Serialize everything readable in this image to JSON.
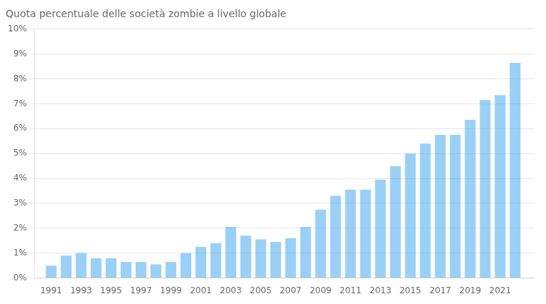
{
  "chart_data": {
    "type": "bar",
    "title": "Quota percentuale delle società zombie a livello globale",
    "x": [
      1991,
      1992,
      1993,
      1994,
      1995,
      1996,
      1997,
      1998,
      1999,
      2000,
      2001,
      2002,
      2003,
      2004,
      2005,
      2006,
      2007,
      2008,
      2009,
      2010,
      2011,
      2012,
      2013,
      2014,
      2015,
      2016,
      2017,
      2018,
      2019,
      2020,
      2021,
      2022
    ],
    "values": [
      0.5,
      0.9,
      1.0,
      0.8,
      0.8,
      0.65,
      0.65,
      0.55,
      0.65,
      1.0,
      1.25,
      1.4,
      2.05,
      1.7,
      1.55,
      1.45,
      1.6,
      2.05,
      2.75,
      3.3,
      3.55,
      3.55,
      3.95,
      4.5,
      5.0,
      5.4,
      5.75,
      5.75,
      6.35,
      7.15,
      7.35,
      8.65
    ],
    "xlim": [
      1989.9,
      2023.3
    ],
    "xticks": [
      1991,
      1993,
      1995,
      1997,
      1999,
      2001,
      2003,
      2005,
      2007,
      2009,
      2011,
      2013,
      2015,
      2017,
      2019,
      2021
    ],
    "ylim": [
      0,
      10
    ],
    "yticks": [
      {
        "value": 0,
        "label": "0%"
      },
      {
        "value": 1,
        "label": "1%"
      },
      {
        "value": 2,
        "label": "2%"
      },
      {
        "value": 3,
        "label": "3%"
      },
      {
        "value": 4,
        "label": "4%"
      },
      {
        "value": 5,
        "label": "5%"
      },
      {
        "value": 6,
        "label": "6%"
      },
      {
        "value": 7,
        "label": "7%"
      },
      {
        "value": 8,
        "label": "8%"
      },
      {
        "value": 9,
        "label": "9%"
      },
      {
        "value": 10,
        "label": "10%"
      }
    ],
    "grid": true
  }
}
